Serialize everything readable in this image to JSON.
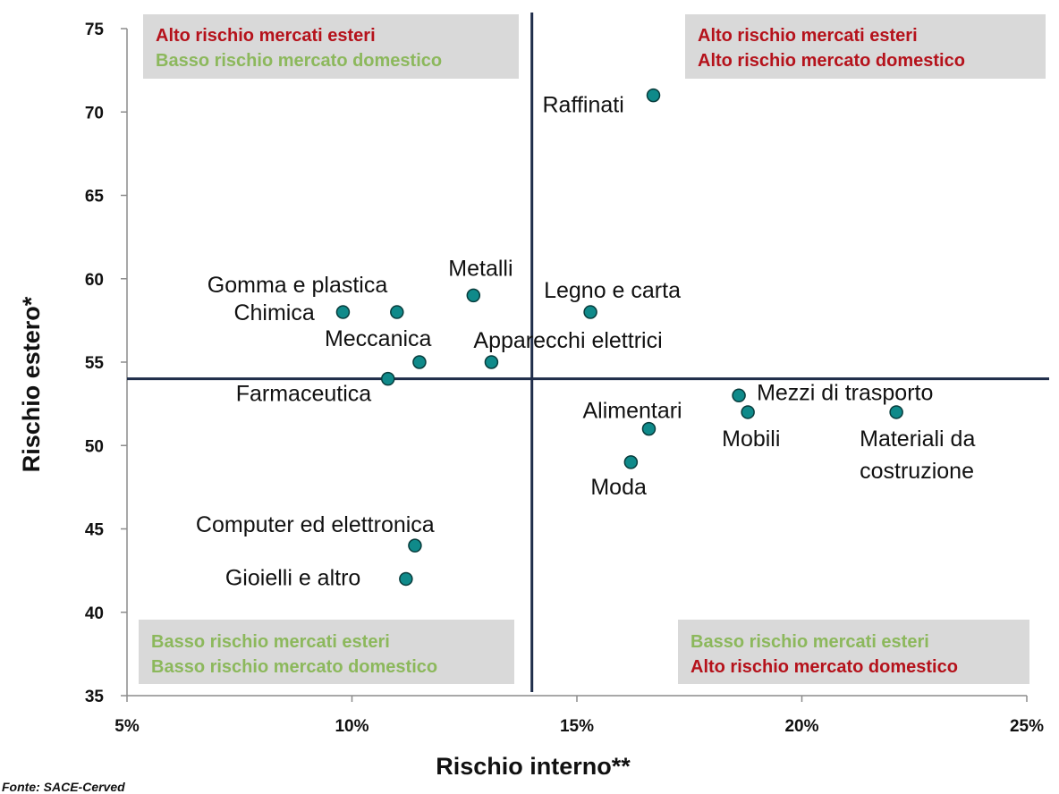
{
  "chart_data": {
    "type": "scatter",
    "xlabel": "Rischio interno**",
    "ylabel": "Rischio estero*",
    "xlim": [
      5,
      25
    ],
    "ylim": [
      35,
      75
    ],
    "x_unit_suffix": "%",
    "x_ticks": [
      5,
      10,
      15,
      20,
      25
    ],
    "y_ticks": [
      35,
      40,
      45,
      50,
      55,
      60,
      65,
      70,
      75
    ],
    "grid": false,
    "reference_lines": {
      "x": 14,
      "y": 54
    },
    "marker_color": "#0f8a8a",
    "points": [
      {
        "label": "Raffinati",
        "x": 16.7,
        "y": 71
      },
      {
        "label": "Metalli",
        "x": 12.7,
        "y": 59
      },
      {
        "label": "Gomma e plastica",
        "x": 11.0,
        "y": 58
      },
      {
        "label": "Chimica",
        "x": 9.8,
        "y": 58
      },
      {
        "label": "Legno e carta",
        "x": 15.3,
        "y": 58
      },
      {
        "label": "Meccanica",
        "x": 11.5,
        "y": 55
      },
      {
        "label": "Apparecchi elettrici",
        "x": 13.1,
        "y": 55
      },
      {
        "label": "Farmaceutica",
        "x": 10.8,
        "y": 54
      },
      {
        "label": "Mezzi di trasporto",
        "x": 18.6,
        "y": 53
      },
      {
        "label": "Mobili",
        "x": 18.8,
        "y": 52
      },
      {
        "label": "Materiali da costruzione",
        "x": 22.1,
        "y": 52
      },
      {
        "label": "Alimentari",
        "x": 16.6,
        "y": 51
      },
      {
        "label": "Moda",
        "x": 16.2,
        "y": 49
      },
      {
        "label": "Computer ed elettronica",
        "x": 11.4,
        "y": 44
      },
      {
        "label": "Gioielli e altro",
        "x": 11.2,
        "y": 42
      }
    ],
    "quadrant_boxes": [
      {
        "id": "top-left",
        "lines": [
          {
            "text": "Alto rischio mercati esteri",
            "level": "alto"
          },
          {
            "text": "Basso rischio mercato domestico",
            "level": "basso"
          }
        ]
      },
      {
        "id": "top-right",
        "lines": [
          {
            "text": "Alto rischio mercati esteri",
            "level": "alto"
          },
          {
            "text": "Alto rischio mercato domestico",
            "level": "alto"
          }
        ]
      },
      {
        "id": "bottom-left",
        "lines": [
          {
            "text": "Basso rischio mercati esteri",
            "level": "basso"
          },
          {
            "text": "Basso rischio mercato domestico",
            "level": "basso"
          }
        ]
      },
      {
        "id": "bottom-right",
        "lines": [
          {
            "text": "Basso rischio mercati esteri",
            "level": "basso"
          },
          {
            "text": "Alto rischio mercato domestico",
            "level": "alto"
          }
        ]
      }
    ],
    "colors": {
      "alto": "#b5121b",
      "basso": "#8cb85c",
      "box_bg": "#d9d9d9",
      "ref_line": "#1f2d4a"
    }
  },
  "source": "Fonte: SACE-Cerved"
}
